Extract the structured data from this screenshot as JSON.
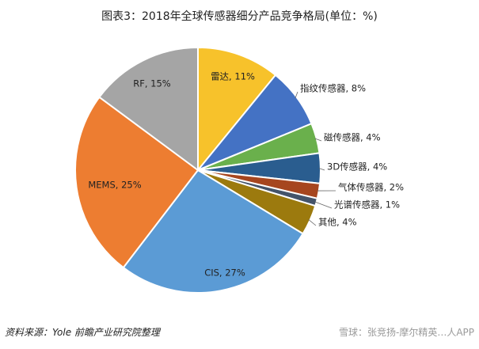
{
  "chart_data": {
    "type": "pie",
    "title": "图表3：2018年全球传感器细分产品竞争格局(单位：%)",
    "slices": [
      {
        "name": "雷达",
        "value": 11,
        "label": "雷达, 11%",
        "color": "#f7c22b"
      },
      {
        "name": "指纹传感器",
        "value": 8,
        "label": "指纹传感器, 8%",
        "color": "#4472c4"
      },
      {
        "name": "磁传感器",
        "value": 4,
        "label": "磁传感器, 4%",
        "color": "#6ab04c"
      },
      {
        "name": "3D传感器",
        "value": 4,
        "label": "3D传感器, 4%",
        "color": "#2a5d8f"
      },
      {
        "name": "气体传感器",
        "value": 2,
        "label": "气体传感器, 2%",
        "color": "#a6461f"
      },
      {
        "name": "光谱传感器",
        "value": 1,
        "label": "光谱传感器, 1%",
        "color": "#44546a"
      },
      {
        "name": "其他",
        "value": 4,
        "label": "其他, 4%",
        "color": "#9c7a0e"
      },
      {
        "name": "CIS",
        "value": 27,
        "label": "CIS, 27%",
        "color": "#5b9bd5"
      },
      {
        "name": "MEMS",
        "value": 25,
        "label": "MEMS, 25%",
        "color": "#ed7d31"
      },
      {
        "name": "RF",
        "value": 15,
        "label": "RF, 15%",
        "color": "#a5a5a5"
      }
    ]
  },
  "source": "资料来源：Yole 前瞻产业研究院整理",
  "watermark": "雪球：张竞扬-摩尔精英…人APP"
}
